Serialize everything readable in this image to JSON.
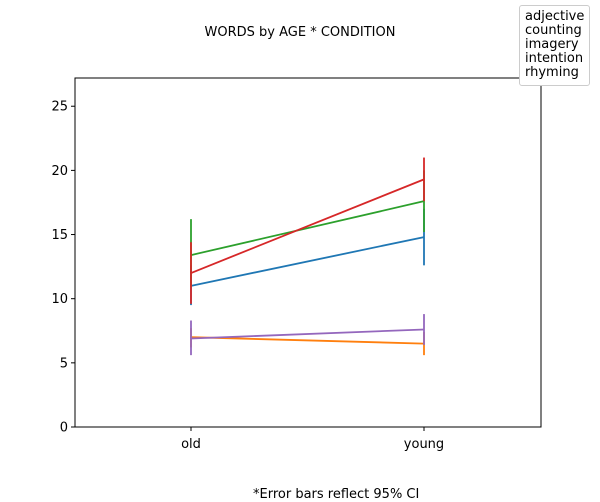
{
  "chart_data": {
    "type": "line",
    "title": "WORDS by AGE * CONDITION",
    "footnote": "*Error bars reflect 95% CI",
    "categories": [
      "old",
      "young"
    ],
    "ylim": [
      0,
      27.2
    ],
    "yticks": [
      0,
      5,
      10,
      15,
      20,
      25
    ],
    "ytick_labels": [
      "0",
      "5",
      "10",
      "15",
      "20",
      "25"
    ],
    "legend_placement": "top-right, outside the plot",
    "legend": [
      "adjective",
      "counting",
      "imagery",
      "intention",
      "rhyming"
    ],
    "grid": false,
    "series": [
      {
        "color": "#1f77b4",
        "values": [
          11.0,
          14.8
        ],
        "ci_low": [
          9.5,
          12.6
        ],
        "ci_high": [
          12.6,
          17.0
        ]
      },
      {
        "color": "#ff7f0e",
        "values": [
          7.0,
          6.5
        ],
        "ci_low": [
          6.2,
          5.6
        ],
        "ci_high": [
          7.7,
          7.4
        ]
      },
      {
        "color": "#2ca02c",
        "values": [
          13.4,
          17.6
        ],
        "ci_low": [
          10.9,
          15.2
        ],
        "ci_high": [
          16.2,
          20.0
        ]
      },
      {
        "color": "#d62728",
        "values": [
          12.0,
          19.3
        ],
        "ci_low": [
          9.6,
          17.6
        ],
        "ci_high": [
          14.4,
          21.0
        ]
      },
      {
        "color": "#9467bd",
        "values": [
          6.9,
          7.6
        ],
        "ci_low": [
          5.6,
          6.4
        ],
        "ci_high": [
          8.3,
          8.8
        ]
      }
    ]
  }
}
